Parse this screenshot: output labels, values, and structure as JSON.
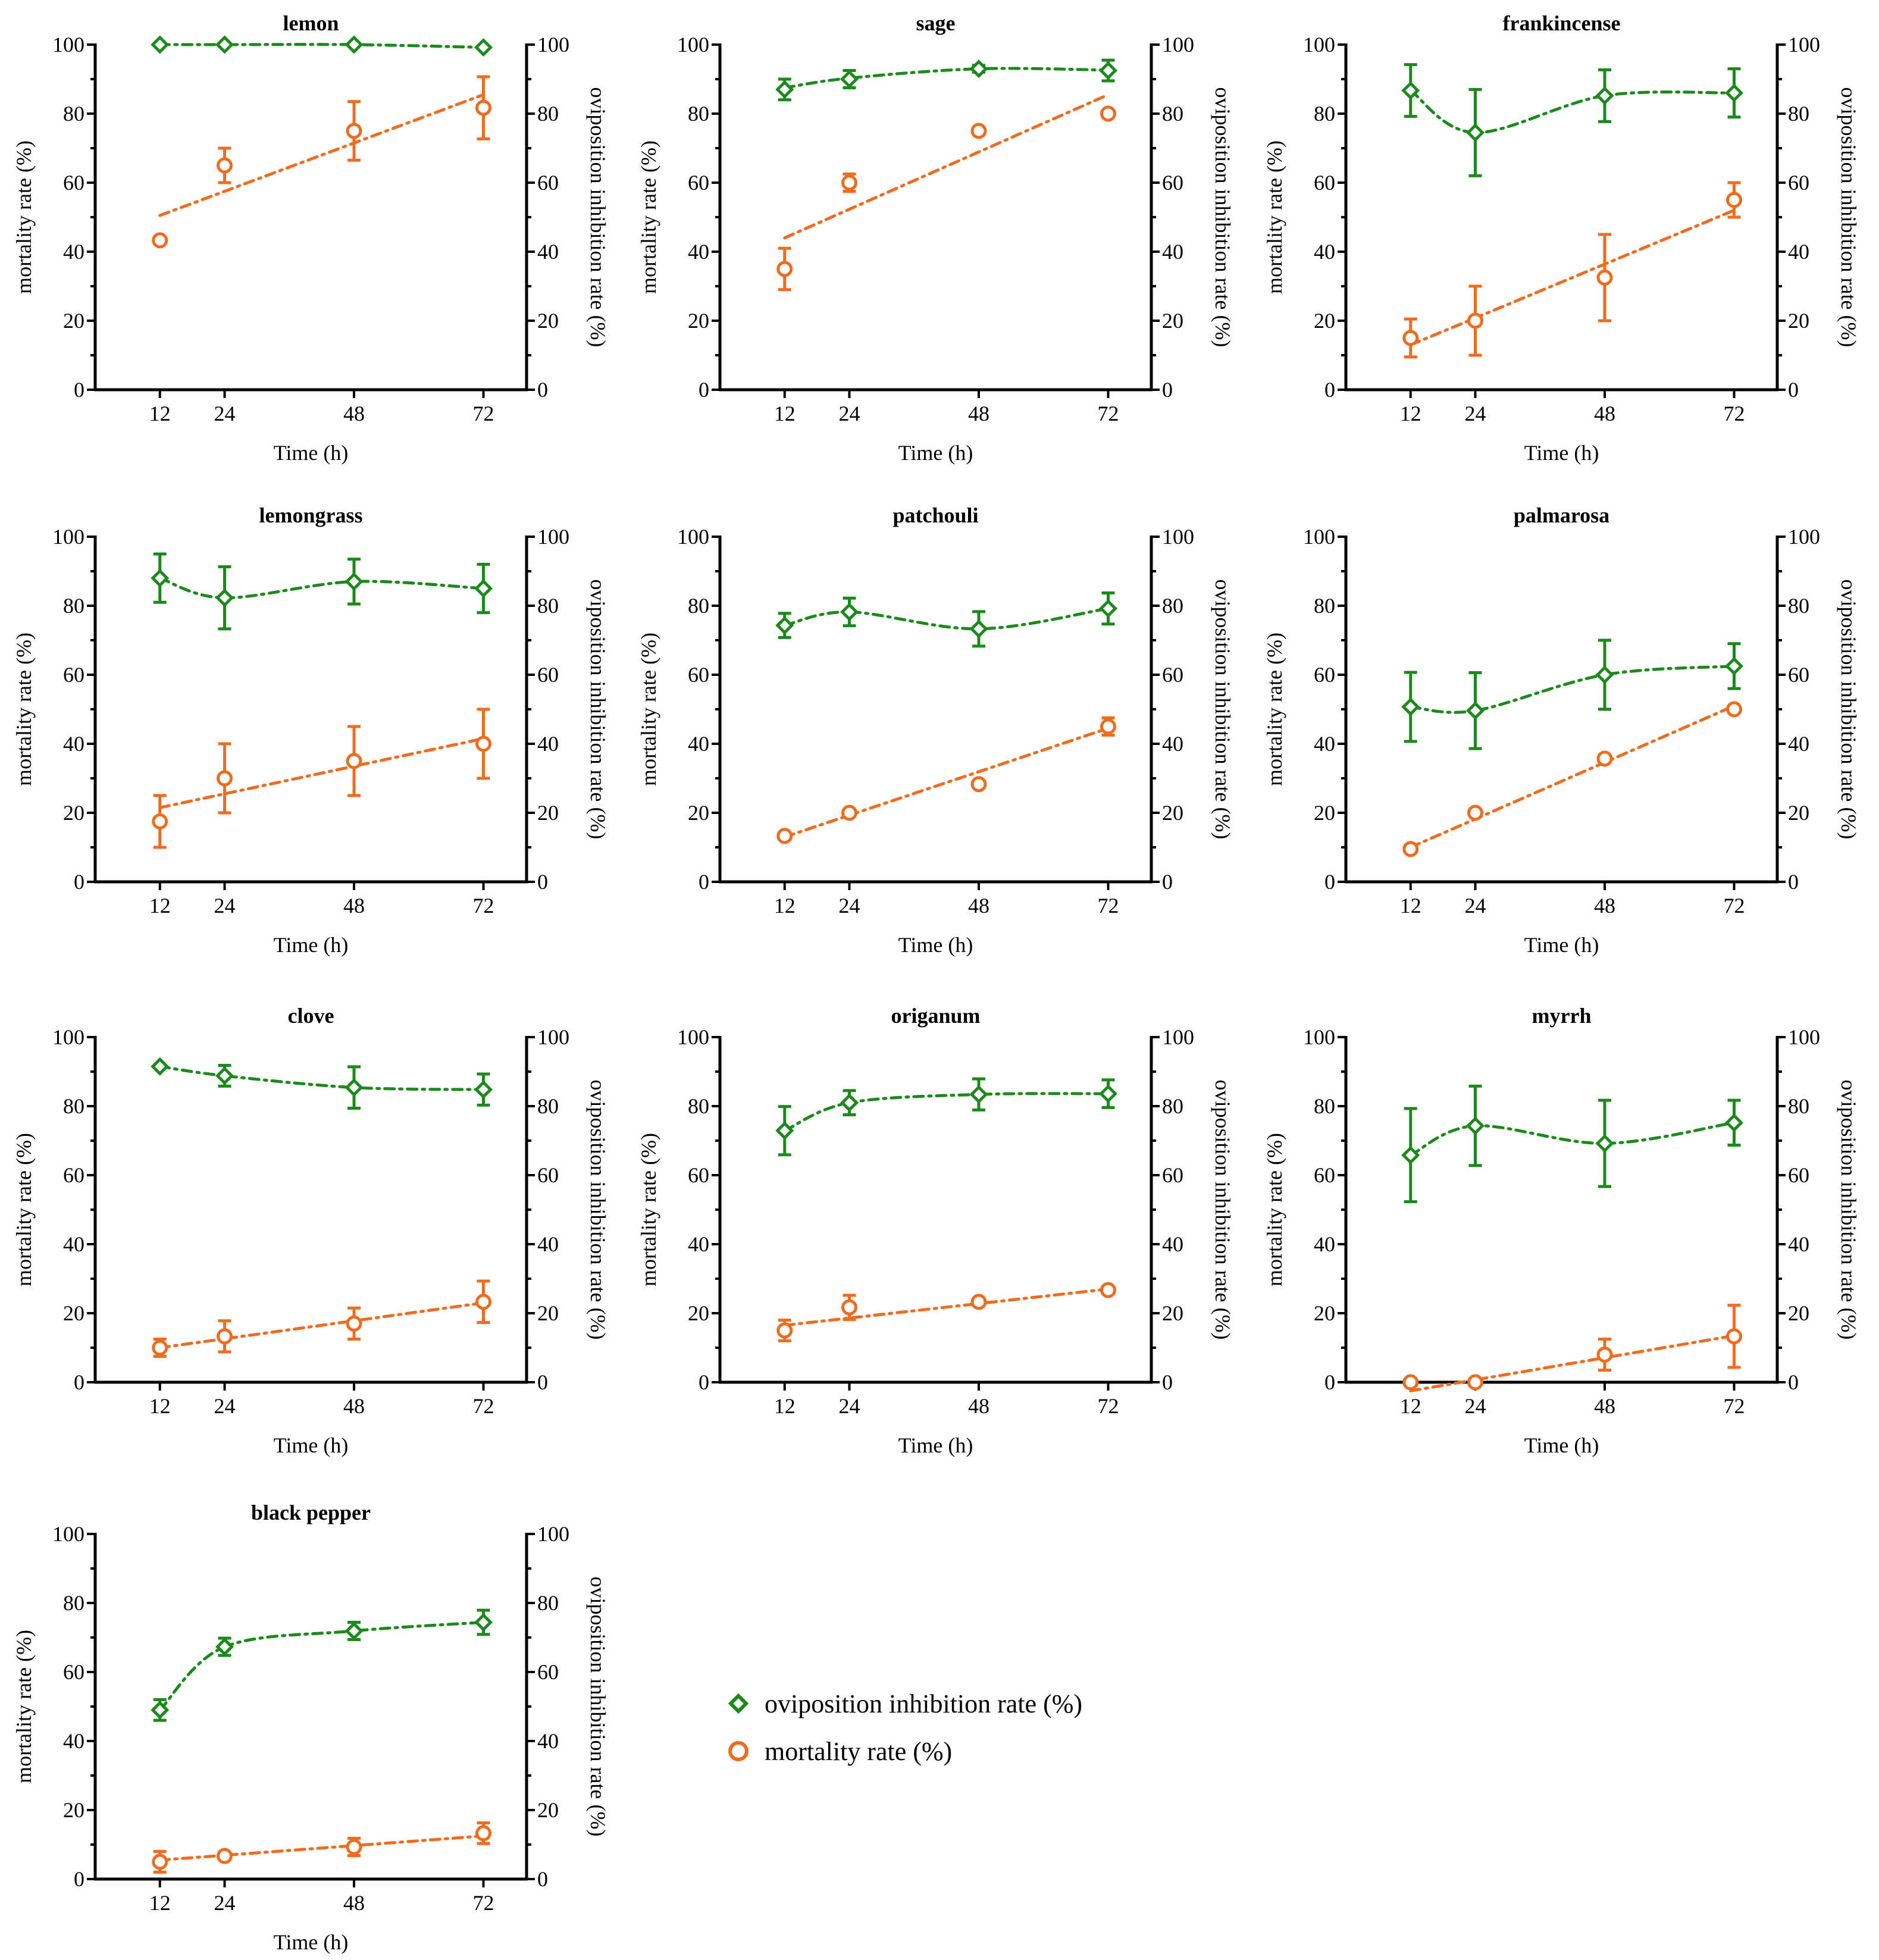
{
  "colors": {
    "oviposition": "#1a8a1a",
    "mortality": "#f26b1d",
    "axis": "#000000"
  },
  "legend": {
    "oviposition_label": "oviposition inhibition rate (%)",
    "mortality_label": "mortality rate (%)"
  },
  "chart_data": [
    {
      "type": "line",
      "title": "lemon",
      "xlabel": "Time (h)",
      "ylabel_left": "mortality rate (%)",
      "ylabel_right": "oviposition inhibition rate (%)",
      "x": [
        12,
        24,
        48,
        72
      ],
      "xlim": [
        0,
        80
      ],
      "ylim": [
        0,
        100
      ],
      "ticks": [
        "0",
        "20",
        "40",
        "60",
        "80",
        "100"
      ],
      "series": [
        {
          "name": "oviposition inhibition rate (%)",
          "values": [
            100,
            100,
            100,
            99.2
          ],
          "errors": [
            0,
            0,
            0,
            0
          ],
          "fit": [
            100,
            100,
            100,
            99.2
          ],
          "smooth": true
        },
        {
          "name": "mortality rate (%)",
          "values": [
            43.3,
            65,
            75,
            81.7
          ],
          "errors": [
            0,
            5,
            8.5,
            9
          ],
          "fit": [
            50.5,
            57.5,
            71.5,
            85.5
          ],
          "smooth": false
        }
      ]
    },
    {
      "type": "line",
      "title": "sage",
      "xlabel": "Time (h)",
      "ylabel_left": "mortality rate (%)",
      "ylabel_right": "oviposition inhibition rate (%)",
      "x": [
        12,
        24,
        48,
        72
      ],
      "xlim": [
        0,
        80
      ],
      "ylim": [
        0,
        100
      ],
      "ticks": [
        "0",
        "20",
        "40",
        "60",
        "80",
        "100"
      ],
      "series": [
        {
          "name": "oviposition inhibition rate (%)",
          "values": [
            87,
            90,
            93,
            92.5
          ],
          "errors": [
            3,
            2.5,
            1,
            3
          ],
          "fit": [
            87.5,
            90.3,
            93,
            92.6
          ],
          "smooth": true
        },
        {
          "name": "mortality rate (%)",
          "values": [
            35,
            60,
            75,
            80
          ],
          "errors": [
            6,
            2.5,
            0,
            0
          ],
          "fit": [
            44,
            51.5,
            67.5,
            85.5
          ],
          "smooth": false
        }
      ]
    },
    {
      "type": "line",
      "title": "frankincense",
      "xlabel": "Time (h)",
      "ylabel_left": "mortality rate (%)",
      "ylabel_right": "oviposition inhibition rate (%)",
      "x": [
        12,
        24,
        48,
        72
      ],
      "xlim": [
        0,
        80
      ],
      "ylim": [
        0,
        100
      ],
      "ticks": [
        "0",
        "20",
        "40",
        "60",
        "80",
        "100"
      ],
      "series": [
        {
          "name": "oviposition inhibition rate (%)",
          "values": [
            86.7,
            74.5,
            85.2,
            86
          ],
          "errors": [
            7.5,
            12.5,
            7.5,
            7
          ],
          "fit": [
            86.7,
            74.5,
            85.2,
            86
          ],
          "smooth": true
        },
        {
          "name": "mortality rate (%)",
          "values": [
            15,
            20,
            32.5,
            55
          ],
          "errors": [
            5.5,
            10,
            12.5,
            5
          ],
          "fit": [
            13,
            20,
            36.5,
            52
          ],
          "smooth": false
        }
      ]
    },
    {
      "type": "line",
      "title": "lemongrass",
      "xlabel": "Time (h)",
      "ylabel_left": "mortality rate (%)",
      "ylabel_right": "oviposition inhibition rate (%)",
      "x": [
        12,
        24,
        48,
        72
      ],
      "xlim": [
        0,
        80
      ],
      "ylim": [
        0,
        100
      ],
      "ticks": [
        "0",
        "20",
        "40",
        "60",
        "80",
        "100"
      ],
      "series": [
        {
          "name": "oviposition inhibition rate (%)",
          "values": [
            88,
            82.3,
            87,
            85
          ],
          "errors": [
            7,
            9,
            6.5,
            7
          ],
          "fit": [
            88,
            82.3,
            87,
            85
          ],
          "smooth": true
        },
        {
          "name": "mortality rate (%)",
          "values": [
            17.5,
            30,
            35,
            40
          ],
          "errors": [
            7.5,
            10,
            10,
            10
          ],
          "fit": [
            21.5,
            25.5,
            33.5,
            41.5
          ],
          "smooth": false
        }
      ]
    },
    {
      "type": "line",
      "title": "patchouli",
      "xlabel": "Time (h)",
      "ylabel_left": "mortality rate (%)",
      "ylabel_right": "oviposition inhibition rate (%)",
      "x": [
        12,
        24,
        48,
        72
      ],
      "xlim": [
        0,
        80
      ],
      "ylim": [
        0,
        100
      ],
      "ticks": [
        "0",
        "20",
        "40",
        "60",
        "80",
        "100"
      ],
      "series": [
        {
          "name": "oviposition inhibition rate (%)",
          "values": [
            74.3,
            78.2,
            73.3,
            79.2
          ],
          "errors": [
            3.5,
            4,
            5,
            4.5
          ],
          "fit": [
            74.3,
            78.2,
            73.3,
            79.2
          ],
          "smooth": true
        },
        {
          "name": "mortality rate (%)",
          "values": [
            13.3,
            20,
            28.3,
            45
          ],
          "errors": [
            0,
            0,
            0,
            2.5
          ],
          "fit": [
            13,
            19.5,
            31,
            44.5
          ],
          "smooth": false
        }
      ]
    },
    {
      "type": "line",
      "title": "palmarosa",
      "xlabel": "Time (h)",
      "ylabel_left": "mortality rate (%)",
      "ylabel_right": "oviposition inhibition rate (%)",
      "x": [
        12,
        24,
        48,
        72
      ],
      "xlim": [
        0,
        80
      ],
      "ylim": [
        0,
        100
      ],
      "ticks": [
        "0",
        "20",
        "40",
        "60",
        "80",
        "100"
      ],
      "series": [
        {
          "name": "oviposition inhibition rate (%)",
          "values": [
            50.7,
            49.6,
            60,
            62.5
          ],
          "errors": [
            10,
            11,
            10,
            6.5
          ],
          "fit": [
            50.7,
            49.6,
            60,
            62.5
          ],
          "smooth": true
        },
        {
          "name": "mortality rate (%)",
          "values": [
            9.5,
            20,
            35.7,
            50
          ],
          "errors": [
            0,
            0,
            0,
            0
          ],
          "fit": [
            10,
            20,
            35.5,
            51
          ],
          "smooth": false
        }
      ]
    },
    {
      "type": "line",
      "title": "clove",
      "xlabel": "Time (h)",
      "ylabel_left": "mortality rate (%)",
      "ylabel_right": "oviposition inhibition rate (%)",
      "x": [
        12,
        24,
        48,
        72
      ],
      "xlim": [
        0,
        80
      ],
      "ylim": [
        0,
        100
      ],
      "ticks": [
        "0",
        "20",
        "40",
        "60",
        "80",
        "100"
      ],
      "series": [
        {
          "name": "oviposition inhibition rate (%)",
          "values": [
            91.5,
            88.8,
            85.4,
            84.8
          ],
          "errors": [
            0,
            3,
            6,
            4.5
          ],
          "fit": [
            91.5,
            88.8,
            85.4,
            84.8
          ],
          "smooth": true
        },
        {
          "name": "mortality rate (%)",
          "values": [
            10,
            13.3,
            17,
            23.3
          ],
          "errors": [
            2.5,
            4.5,
            4.5,
            6
          ],
          "fit": [
            10,
            12.8,
            17.5,
            23
          ],
          "smooth": false
        }
      ]
    },
    {
      "type": "line",
      "title": "origanum",
      "xlabel": "Time (h)",
      "ylabel_left": "mortality rate (%)",
      "ylabel_right": "oviposition inhibition rate (%)",
      "x": [
        12,
        24,
        48,
        72
      ],
      "xlim": [
        0,
        80
      ],
      "ylim": [
        0,
        100
      ],
      "ticks": [
        "0",
        "20",
        "40",
        "60",
        "80",
        "100"
      ],
      "series": [
        {
          "name": "oviposition inhibition rate (%)",
          "values": [
            72.9,
            81,
            83.4,
            83.6
          ],
          "errors": [
            7,
            3.5,
            4.5,
            4
          ],
          "fit": [
            72.9,
            81,
            83.4,
            83.6
          ],
          "smooth": true
        },
        {
          "name": "mortality rate (%)",
          "values": [
            15,
            21.7,
            23.3,
            26.7
          ],
          "errors": [
            3,
            3.5,
            0,
            0
          ],
          "fit": [
            16.5,
            19,
            23,
            27
          ],
          "smooth": false
        }
      ]
    },
    {
      "type": "line",
      "title": "myrrh",
      "xlabel": "Time (h)",
      "ylabel_left": "mortality rate (%)",
      "ylabel_right": "oviposition inhibition rate (%)",
      "x": [
        12,
        24,
        48,
        72
      ],
      "xlim": [
        0,
        80
      ],
      "ylim": [
        0,
        100
      ],
      "ticks": [
        "0",
        "20",
        "40",
        "60",
        "80",
        "100"
      ],
      "series": [
        {
          "name": "oviposition inhibition rate (%)",
          "values": [
            65.8,
            74.3,
            69.2,
            75.2
          ],
          "errors": [
            13.5,
            11.5,
            12.5,
            6.5
          ],
          "fit": [
            65.8,
            74.3,
            69.2,
            75.2
          ],
          "smooth": true
        },
        {
          "name": "mortality rate (%)",
          "values": [
            0,
            0,
            8,
            13.3
          ],
          "errors": [
            0,
            0,
            4.5,
            9
          ],
          "fit": [
            -2.5,
            1.5,
            7.5,
            13.5
          ],
          "smooth": false
        }
      ]
    },
    {
      "type": "line",
      "title": "black pepper",
      "xlabel": "Time (h)",
      "ylabel_left": "mortality rate (%)",
      "ylabel_right": "oviposition inhibition rate (%)",
      "x": [
        12,
        24,
        48,
        72
      ],
      "xlim": [
        0,
        80
      ],
      "ylim": [
        0,
        100
      ],
      "ticks": [
        "0",
        "20",
        "40",
        "60",
        "80",
        "100"
      ],
      "series": [
        {
          "name": "oviposition inhibition rate (%)",
          "values": [
            49,
            67.3,
            71.9,
            74.4
          ],
          "errors": [
            3,
            2.5,
            2.5,
            3.5
          ],
          "fit": [
            49,
            67.3,
            71.9,
            74.4
          ],
          "smooth": true
        },
        {
          "name": "mortality rate (%)",
          "values": [
            5,
            6.7,
            9.3,
            13.3
          ],
          "errors": [
            3,
            0,
            2.5,
            3
          ],
          "fit": [
            5.5,
            6.8,
            9.5,
            12.5
          ],
          "smooth": false
        }
      ]
    }
  ]
}
